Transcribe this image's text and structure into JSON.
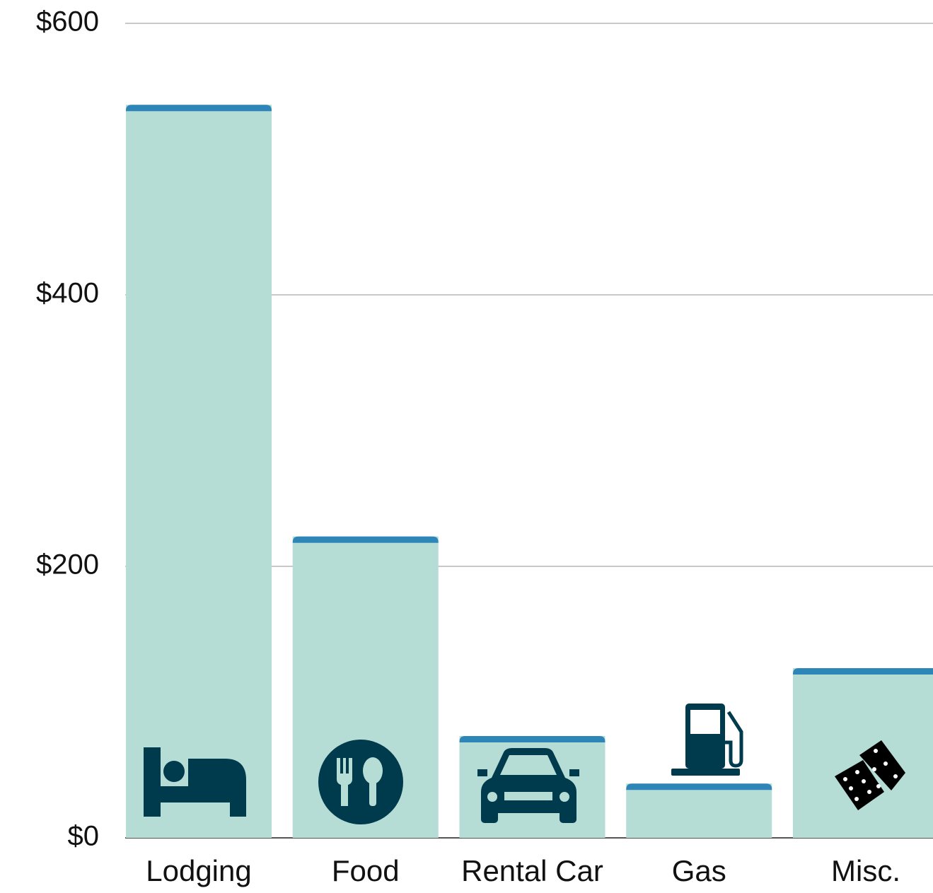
{
  "chart_data": {
    "type": "bar",
    "categories": [
      "Lodging",
      "Food",
      "Rental Car",
      "Gas",
      "Misc."
    ],
    "values": [
      540,
      222,
      75,
      40,
      125
    ],
    "color": "#b5dcd5",
    "cap_color": "#2e86b8",
    "ylim": [
      0,
      600
    ],
    "yticks": [
      {
        "value": 0,
        "label": "$0"
      },
      {
        "value": 200,
        "label": "$200"
      },
      {
        "value": 400,
        "label": "$400"
      },
      {
        "value": 600,
        "label": "$600"
      }
    ],
    "grid": true
  }
}
